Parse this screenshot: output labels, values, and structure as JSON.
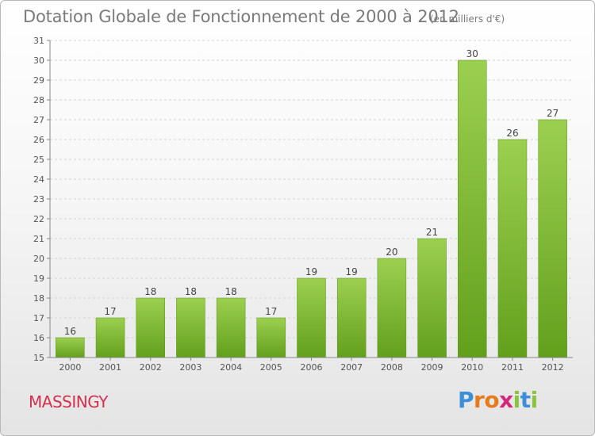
{
  "header": {
    "title": "Dotation Globale de Fonctionnement de 2000 à 2012",
    "unit": "(en milliers d'€)"
  },
  "footer": {
    "town": "MASSINGY",
    "logo": "Proxiti"
  },
  "colors": {
    "bar_top": "#9ccf50",
    "bar_bottom": "#62a01c",
    "title": "#7a7a7a",
    "town": "#d2304e",
    "logo_letters": [
      "#3a8fd8",
      "#e87a1e",
      "#e87a1e",
      "#d6267a",
      "#8ac43f",
      "#3a8fd8",
      "#8ac43f"
    ]
  },
  "chart_data": {
    "type": "bar",
    "title": "Dotation Globale de Fonctionnement de 2000 à 2012",
    "subtitle": "(en milliers d'€)",
    "categories": [
      "2000",
      "2001",
      "2002",
      "2003",
      "2004",
      "2005",
      "2006",
      "2007",
      "2008",
      "2009",
      "2010",
      "2011",
      "2012"
    ],
    "values": [
      16,
      17,
      18,
      18,
      18,
      17,
      19,
      19,
      20,
      21,
      30,
      26,
      27
    ],
    "ylim": [
      15,
      31
    ],
    "yticks": [
      15,
      16,
      17,
      18,
      19,
      20,
      21,
      22,
      23,
      24,
      25,
      26,
      27,
      28,
      29,
      30,
      31
    ],
    "grid": true,
    "legend": "none"
  }
}
